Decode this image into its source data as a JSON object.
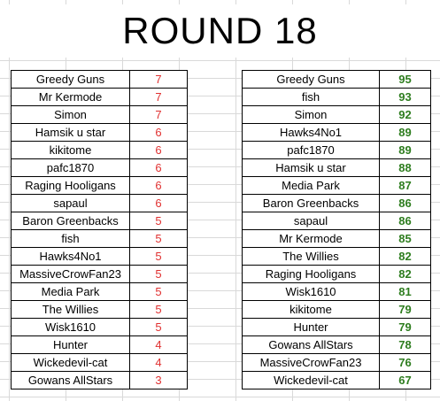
{
  "title": "ROUND 18",
  "colors": {
    "round_score": "#e03030",
    "total_score": "#2e7d1f"
  },
  "round_scores": [
    {
      "name": "Greedy Guns",
      "score": "7"
    },
    {
      "name": "Mr Kermode",
      "score": "7"
    },
    {
      "name": "Simon",
      "score": "7"
    },
    {
      "name": "Hamsik u star",
      "score": "6"
    },
    {
      "name": "kikitome",
      "score": "6"
    },
    {
      "name": "pafc1870",
      "score": "6"
    },
    {
      "name": "Raging Hooligans",
      "score": "6"
    },
    {
      "name": "sapaul",
      "score": "6"
    },
    {
      "name": "Baron Greenbacks",
      "score": "5"
    },
    {
      "name": "fish",
      "score": "5"
    },
    {
      "name": "Hawks4No1",
      "score": "5"
    },
    {
      "name": "MassiveCrowFan23",
      "score": "5"
    },
    {
      "name": "Media Park",
      "score": "5"
    },
    {
      "name": "The Willies",
      "score": "5"
    },
    {
      "name": "Wisk1610",
      "score": "5"
    },
    {
      "name": "Hunter",
      "score": "4"
    },
    {
      "name": "Wickedevil-cat",
      "score": "4"
    },
    {
      "name": "Gowans AllStars",
      "score": "3"
    }
  ],
  "total_scores": [
    {
      "name": "Greedy Guns",
      "score": "95"
    },
    {
      "name": "fish",
      "score": "93"
    },
    {
      "name": "Simon",
      "score": "92"
    },
    {
      "name": "Hawks4No1",
      "score": "89"
    },
    {
      "name": "pafc1870",
      "score": "89"
    },
    {
      "name": "Hamsik u star",
      "score": "88"
    },
    {
      "name": "Media Park",
      "score": "87"
    },
    {
      "name": "Baron Greenbacks",
      "score": "86"
    },
    {
      "name": "sapaul",
      "score": "86"
    },
    {
      "name": "Mr Kermode",
      "score": "85"
    },
    {
      "name": "The Willies",
      "score": "82"
    },
    {
      "name": "Raging Hooligans",
      "score": "82"
    },
    {
      "name": "Wisk1610",
      "score": "81"
    },
    {
      "name": "kikitome",
      "score": "79"
    },
    {
      "name": "Hunter",
      "score": "79"
    },
    {
      "name": "Gowans AllStars",
      "score": "78"
    },
    {
      "name": "MassiveCrowFan23",
      "score": "76"
    },
    {
      "name": "Wickedevil-cat",
      "score": "67"
    }
  ]
}
